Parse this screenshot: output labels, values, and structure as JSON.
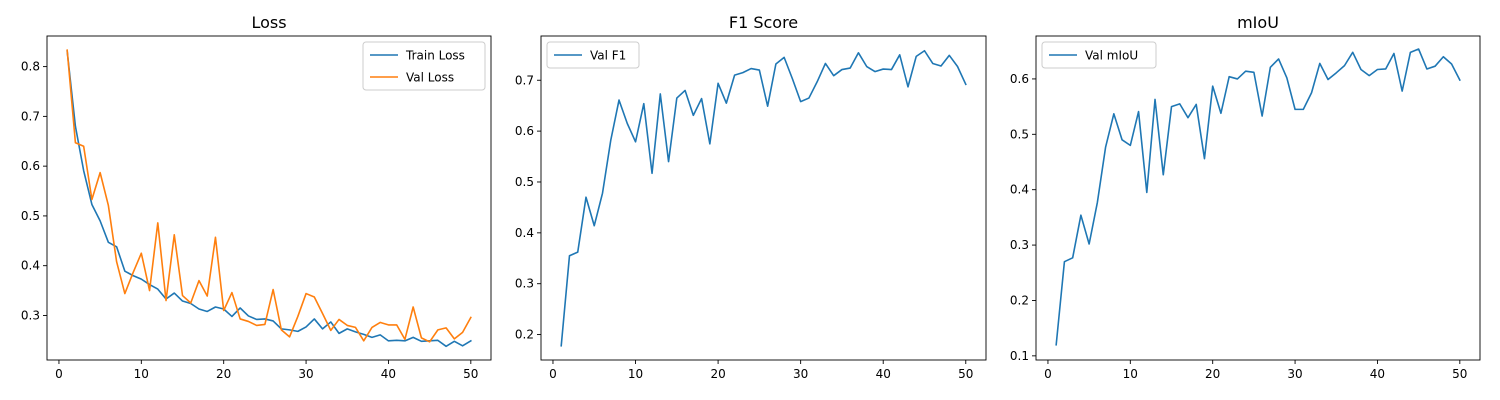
{
  "figure": {
    "background": "#ffffff"
  },
  "colors": {
    "series_blue": "#1f77b4",
    "series_orange": "#ff7f0e",
    "axis": "#000000",
    "legend_border": "#cccccc"
  },
  "chart_data": [
    {
      "type": "line",
      "title": "Loss",
      "xlabel": "",
      "ylabel": "",
      "xlim": [
        -1.45,
        52.45
      ],
      "ylim": [
        0.2105,
        0.8615
      ],
      "xticks": [
        0,
        10,
        20,
        30,
        40,
        50
      ],
      "yticks": [
        0.3,
        0.4,
        0.5,
        0.6,
        0.7,
        0.8
      ],
      "grid": false,
      "legend": "top-right",
      "x": [
        1,
        2,
        3,
        4,
        5,
        6,
        7,
        8,
        9,
        10,
        11,
        12,
        13,
        14,
        15,
        16,
        17,
        18,
        19,
        20,
        21,
        22,
        23,
        24,
        25,
        26,
        27,
        28,
        29,
        30,
        31,
        32,
        33,
        34,
        35,
        36,
        37,
        38,
        39,
        40,
        41,
        42,
        43,
        44,
        45,
        46,
        47,
        48,
        49,
        50
      ],
      "series": [
        {
          "name": "Train Loss",
          "color": "#1f77b4",
          "values": [
            0.831,
            0.68,
            0.591,
            0.523,
            0.49,
            0.447,
            0.438,
            0.389,
            0.38,
            0.373,
            0.362,
            0.353,
            0.333,
            0.345,
            0.329,
            0.324,
            0.313,
            0.308,
            0.317,
            0.313,
            0.298,
            0.315,
            0.299,
            0.292,
            0.293,
            0.289,
            0.273,
            0.271,
            0.268,
            0.277,
            0.293,
            0.273,
            0.287,
            0.264,
            0.273,
            0.267,
            0.262,
            0.256,
            0.261,
            0.249,
            0.25,
            0.249,
            0.256,
            0.248,
            0.249,
            0.25,
            0.238,
            0.248,
            0.239,
            0.249
          ]
        },
        {
          "name": "Val Loss",
          "color": "#ff7f0e",
          "values": [
            0.833,
            0.647,
            0.64,
            0.533,
            0.587,
            0.521,
            0.408,
            0.344,
            0.386,
            0.425,
            0.35,
            0.486,
            0.33,
            0.462,
            0.34,
            0.325,
            0.37,
            0.339,
            0.457,
            0.31,
            0.346,
            0.293,
            0.288,
            0.28,
            0.282,
            0.352,
            0.271,
            0.257,
            0.298,
            0.344,
            0.337,
            0.304,
            0.27,
            0.292,
            0.28,
            0.276,
            0.249,
            0.276,
            0.286,
            0.281,
            0.281,
            0.252,
            0.317,
            0.255,
            0.247,
            0.271,
            0.275,
            0.253,
            0.266,
            0.296
          ]
        }
      ]
    },
    {
      "type": "line",
      "title": "F1 Score",
      "xlabel": "",
      "ylabel": "",
      "xlim": [
        -1.45,
        52.45
      ],
      "ylim": [
        0.15,
        0.787
      ],
      "xticks": [
        0,
        10,
        20,
        30,
        40,
        50
      ],
      "yticks": [
        0.2,
        0.3,
        0.4,
        0.5,
        0.6,
        0.7
      ],
      "grid": false,
      "legend": "top-left",
      "x": [
        1,
        2,
        3,
        4,
        5,
        6,
        7,
        8,
        9,
        10,
        11,
        12,
        13,
        14,
        15,
        16,
        17,
        18,
        19,
        20,
        21,
        22,
        23,
        24,
        25,
        26,
        27,
        28,
        29,
        30,
        31,
        32,
        33,
        34,
        35,
        36,
        37,
        38,
        39,
        40,
        41,
        42,
        43,
        44,
        45,
        46,
        47,
        48,
        49,
        50
      ],
      "series": [
        {
          "name": "Val F1",
          "color": "#1f77b4",
          "values": [
            0.178,
            0.355,
            0.362,
            0.47,
            0.414,
            0.478,
            0.582,
            0.661,
            0.615,
            0.579,
            0.654,
            0.517,
            0.673,
            0.54,
            0.665,
            0.68,
            0.631,
            0.664,
            0.575,
            0.694,
            0.655,
            0.71,
            0.715,
            0.723,
            0.72,
            0.649,
            0.732,
            0.745,
            0.703,
            0.658,
            0.665,
            0.697,
            0.733,
            0.709,
            0.721,
            0.724,
            0.754,
            0.727,
            0.717,
            0.722,
            0.721,
            0.75,
            0.687,
            0.747,
            0.758,
            0.733,
            0.728,
            0.749,
            0.727,
            0.692
          ]
        }
      ]
    },
    {
      "type": "line",
      "title": "mIoU",
      "xlabel": "",
      "ylabel": "",
      "xlim": [
        -1.45,
        52.45
      ],
      "ylim": [
        0.0925,
        0.6775
      ],
      "xticks": [
        0,
        10,
        20,
        30,
        40,
        50
      ],
      "yticks": [
        0.1,
        0.2,
        0.3,
        0.4,
        0.5,
        0.6
      ],
      "grid": false,
      "legend": "top-left",
      "x": [
        1,
        2,
        3,
        4,
        5,
        6,
        7,
        8,
        9,
        10,
        11,
        12,
        13,
        14,
        15,
        16,
        17,
        18,
        19,
        20,
        21,
        22,
        23,
        24,
        25,
        26,
        27,
        28,
        29,
        30,
        31,
        32,
        33,
        34,
        35,
        36,
        37,
        38,
        39,
        40,
        41,
        42,
        43,
        44,
        45,
        46,
        47,
        48,
        49,
        50
      ],
      "series": [
        {
          "name": "Val mIoU",
          "color": "#1f77b4",
          "values": [
            0.12,
            0.27,
            0.277,
            0.354,
            0.302,
            0.377,
            0.477,
            0.537,
            0.49,
            0.48,
            0.541,
            0.395,
            0.563,
            0.427,
            0.55,
            0.555,
            0.53,
            0.554,
            0.456,
            0.587,
            0.538,
            0.604,
            0.6,
            0.614,
            0.612,
            0.533,
            0.621,
            0.636,
            0.602,
            0.545,
            0.545,
            0.575,
            0.628,
            0.599,
            0.611,
            0.624,
            0.648,
            0.617,
            0.606,
            0.617,
            0.618,
            0.646,
            0.578,
            0.648,
            0.654,
            0.618,
            0.623,
            0.64,
            0.627,
            0.598
          ]
        }
      ]
    }
  ]
}
